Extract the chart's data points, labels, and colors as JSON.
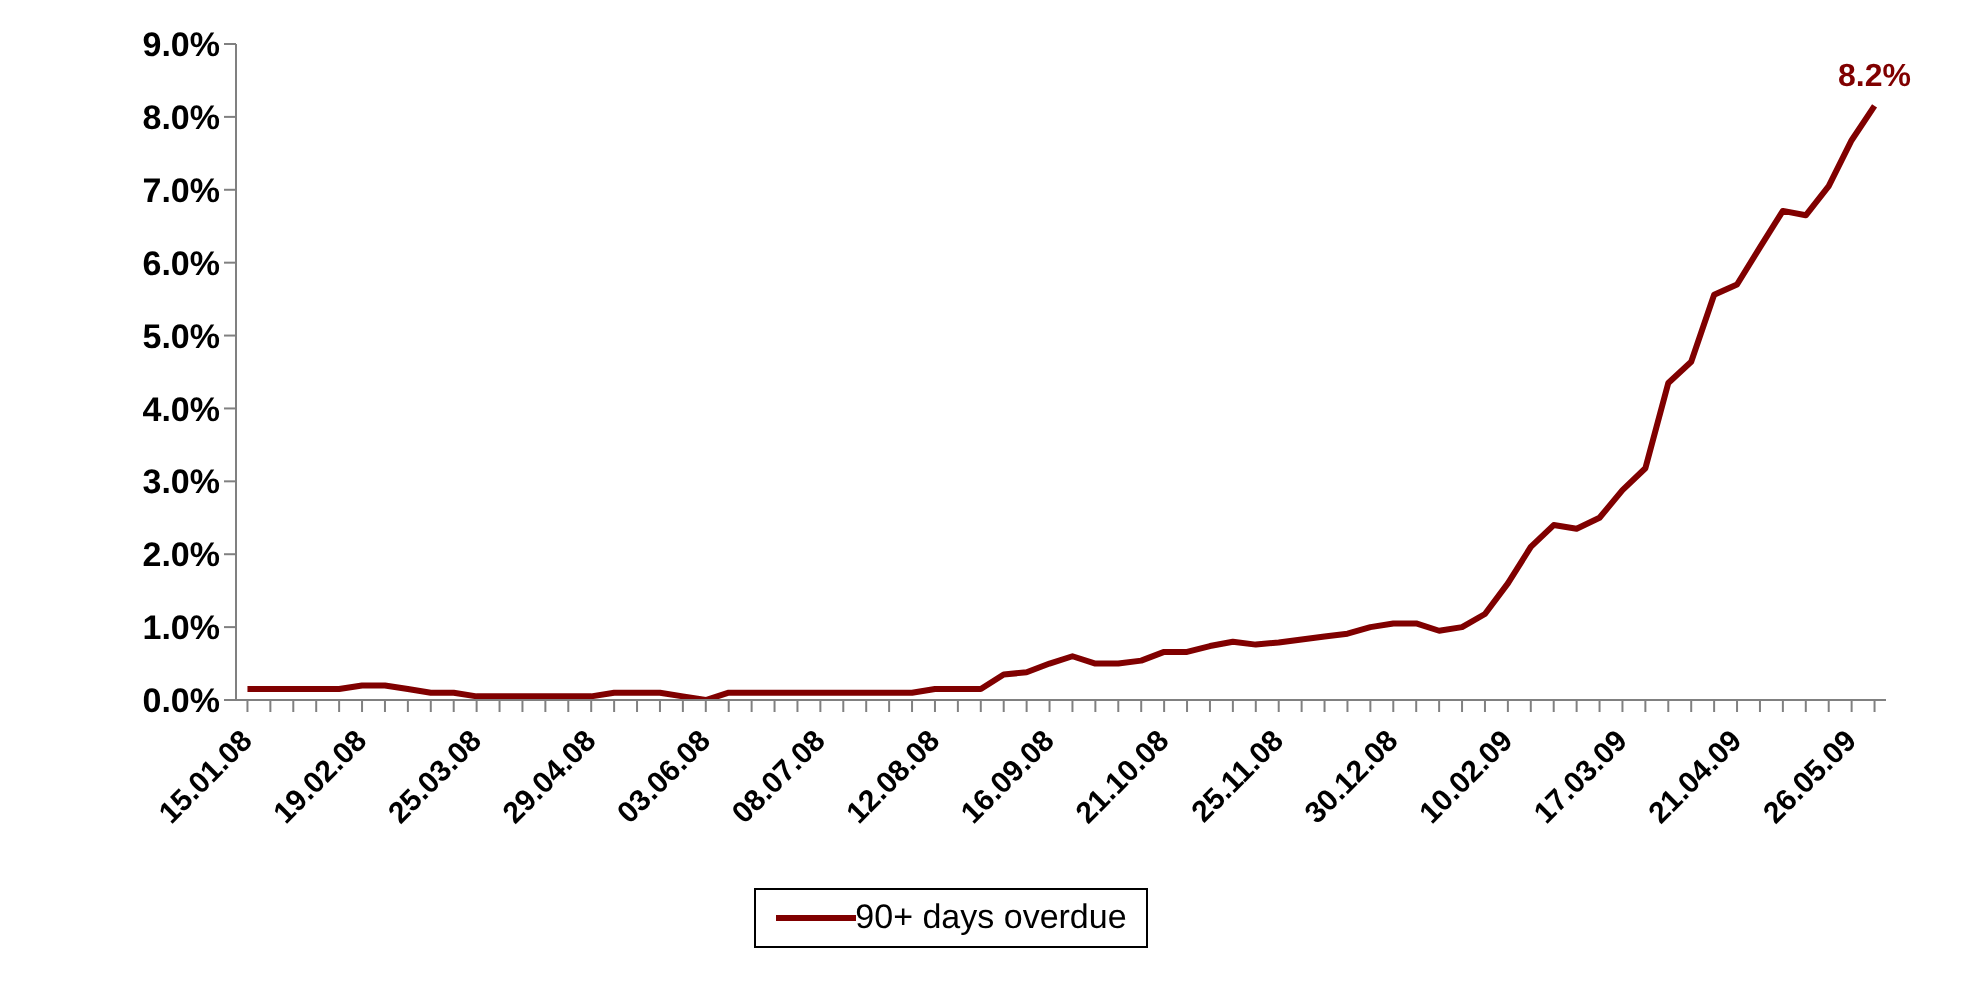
{
  "chart_data": {
    "type": "line",
    "categories": [
      "15.01.08",
      null,
      null,
      null,
      null,
      "19.02.08",
      null,
      null,
      null,
      null,
      "25.03.08",
      null,
      null,
      null,
      null,
      "29.04.08",
      null,
      null,
      null,
      null,
      "03.06.08",
      null,
      null,
      null,
      null,
      "08.07.08",
      null,
      null,
      null,
      null,
      "12.08.08",
      null,
      null,
      null,
      null,
      "16.09.08",
      null,
      null,
      null,
      null,
      "21.10.08",
      null,
      null,
      null,
      null,
      "25.11.08",
      null,
      null,
      null,
      null,
      "30.12.08",
      null,
      null,
      null,
      null,
      "10.02.09",
      null,
      null,
      null,
      null,
      "17.03.09",
      null,
      null,
      null,
      null,
      "21.04.09",
      null,
      null,
      null,
      null,
      "26.05.09",
      null
    ],
    "series": [
      {
        "name": "90+ days overdue",
        "color": "#800000",
        "values": [
          0.15,
          0.15,
          0.15,
          0.15,
          0.15,
          0.2,
          0.2,
          0.15,
          0.1,
          0.1,
          0.05,
          0.05,
          0.05,
          0.05,
          0.05,
          0.05,
          0.1,
          0.1,
          0.1,
          0.05,
          0.0,
          0.1,
          0.1,
          0.1,
          0.1,
          0.1,
          0.1,
          0.1,
          0.1,
          0.1,
          0.15,
          0.15,
          0.15,
          0.35,
          0.38,
          0.5,
          0.6,
          0.5,
          0.5,
          0.54,
          0.66,
          0.66,
          0.74,
          0.8,
          0.76,
          0.79,
          0.83,
          0.87,
          0.91,
          1.0,
          1.05,
          1.05,
          0.95,
          1.0,
          1.18,
          1.6,
          2.1,
          2.4,
          2.35,
          2.5,
          2.88,
          3.18,
          4.35,
          4.64,
          5.56,
          5.7,
          6.21,
          6.71,
          6.65,
          7.05,
          7.68,
          8.15
        ],
        "value_labels": [
          null,
          null,
          null,
          null,
          null,
          null,
          null,
          null,
          null,
          null,
          null,
          null,
          null,
          null,
          null,
          null,
          null,
          null,
          null,
          null,
          null,
          null,
          null,
          null,
          null,
          null,
          null,
          null,
          null,
          null,
          null,
          null,
          null,
          null,
          null,
          null,
          null,
          null,
          null,
          null,
          null,
          null,
          null,
          null,
          null,
          null,
          null,
          null,
          null,
          null,
          null,
          null,
          null,
          null,
          null,
          null,
          null,
          null,
          null,
          null,
          null,
          null,
          null,
          null,
          null,
          null,
          null,
          null,
          null,
          null,
          null,
          "8.2%"
        ]
      }
    ],
    "ylim": [
      0,
      9
    ],
    "yticks": [
      {
        "value": 0,
        "label": "0.0%"
      },
      {
        "value": 1,
        "label": "1.0%"
      },
      {
        "value": 2,
        "label": "2.0%"
      },
      {
        "value": 3,
        "label": "3.0%"
      },
      {
        "value": 4,
        "label": "4.0%"
      },
      {
        "value": 5,
        "label": "5.0%"
      },
      {
        "value": 6,
        "label": "6.0%"
      },
      {
        "value": 7,
        "label": "7.0%"
      },
      {
        "value": 8,
        "label": "8.0%"
      },
      {
        "value": 9,
        "label": "9.0%"
      }
    ],
    "legend": "bottom",
    "grid": false,
    "marker": "none",
    "line_style": "solid"
  }
}
